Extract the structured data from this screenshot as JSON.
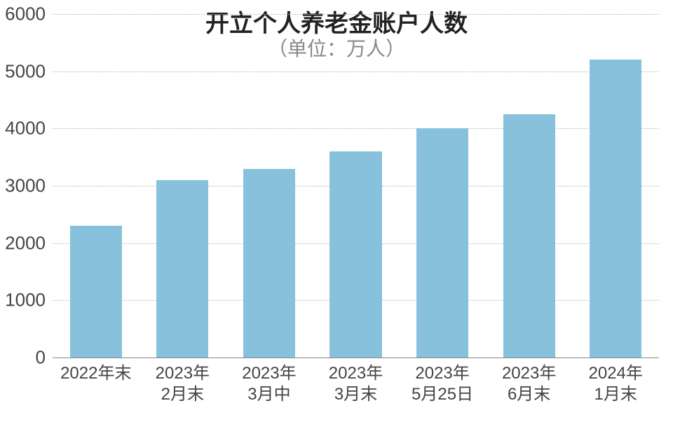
{
  "chart": {
    "type": "bar",
    "title": "开立个人养老金账户人数",
    "subtitle": "（单位：万人）",
    "title_fontsize": 34,
    "subtitle_fontsize": 28,
    "subtitle_color": "#888888",
    "background_color": "#ffffff",
    "bar_color": "#87c1dc",
    "grid_color": "#b5b5b5",
    "grid_style": "dotted",
    "axis_color": "#888888",
    "text_color": "#444444",
    "ylim": [
      0,
      6000
    ],
    "yticks": [
      0,
      1000,
      2000,
      3000,
      4000,
      5000,
      6000
    ],
    "ytick_labels": [
      "0",
      "1000",
      "2000",
      "3000",
      "4000",
      "5000",
      "6000"
    ],
    "bar_width_ratio": 0.6,
    "categories": [
      {
        "line1": "2022年末",
        "line2": ""
      },
      {
        "line1": "2023年",
        "line2": "2月末"
      },
      {
        "line1": "2023年",
        "line2": "3月中"
      },
      {
        "line1": "2023年",
        "line2": "3月末"
      },
      {
        "line1": "2023年",
        "line2": "5月25日"
      },
      {
        "line1": "2023年",
        "line2": "6月末"
      },
      {
        "line1": "2024年",
        "line2": "1月末"
      }
    ],
    "values": [
      2300,
      3100,
      3300,
      3600,
      4000,
      4250,
      5200
    ]
  }
}
